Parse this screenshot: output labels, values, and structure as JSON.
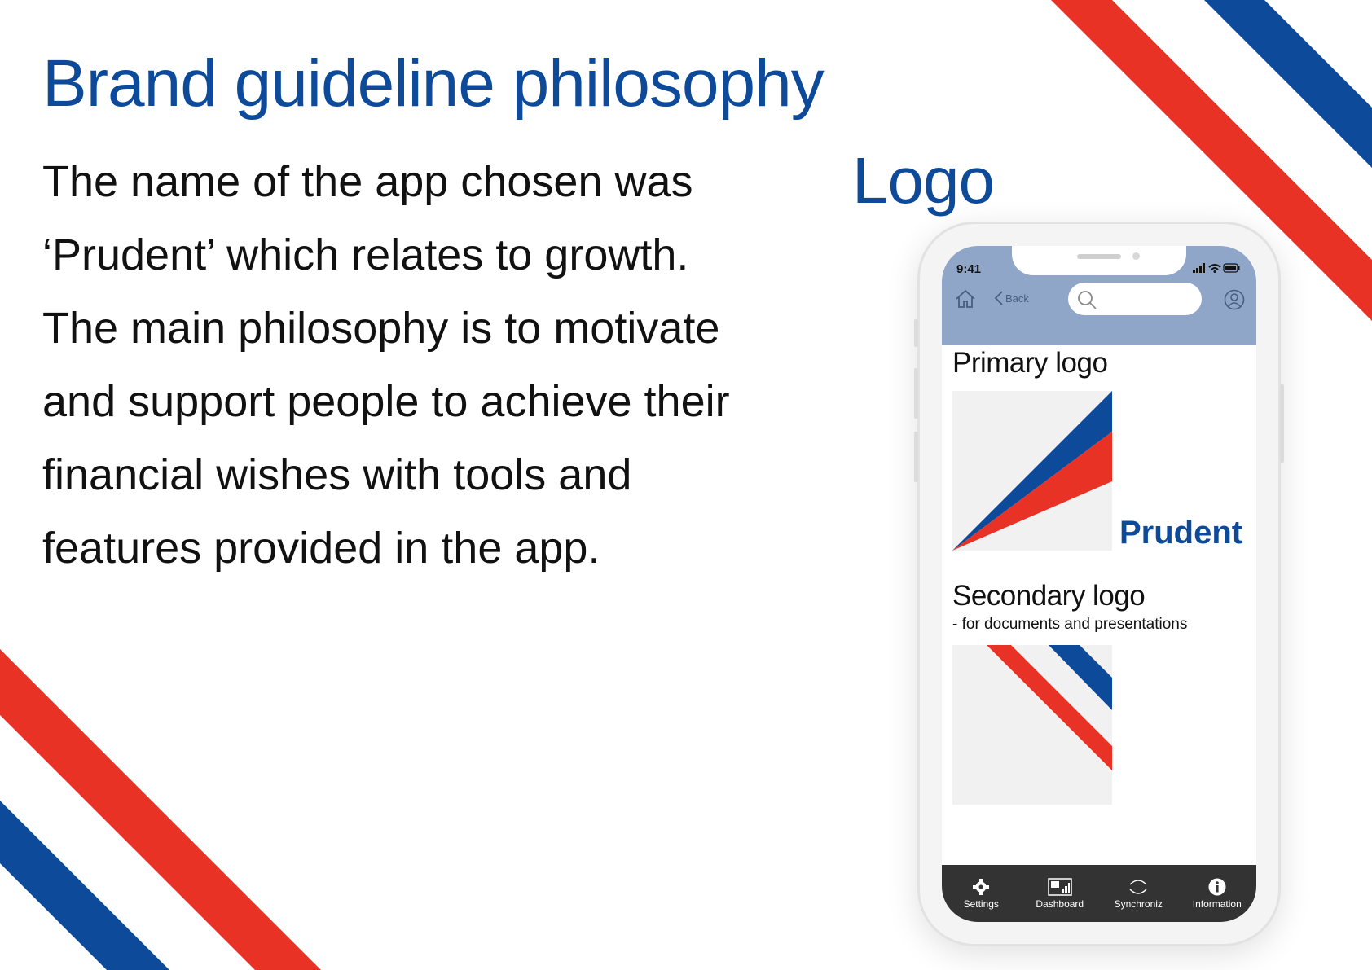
{
  "page": {
    "title": "Brand guideline philosophy",
    "body_lines": [
      "The name of the app chosen was",
      "‘Prudent’ which relates to growth.",
      "The main philosophy is to motivate",
      "and support people to achieve their",
      "financial wishes with tools and",
      "features provided in the app."
    ],
    "logo_heading": "Logo"
  },
  "colors": {
    "brand_blue": "#0d4a9a",
    "brand_red": "#e83226",
    "header_blue": "#8fa6c9",
    "tabbar_dark": "#333333"
  },
  "phone": {
    "status": {
      "time": "9:41"
    },
    "header": {
      "home_icon": "home-icon",
      "back_label": "Back",
      "search_placeholder": "",
      "profile_icon": "profile-icon"
    },
    "content": {
      "primary_heading": "Primary logo",
      "brand_name": "Prudent",
      "secondary_heading": "Secondary logo",
      "secondary_subtitle": "- for documents and  presentations"
    },
    "tabs": [
      {
        "label": "Settings",
        "icon": "gear-icon"
      },
      {
        "label": "Dashboard",
        "icon": "dashboard-icon"
      },
      {
        "label": "Synchroniz",
        "icon": "sync-icon"
      },
      {
        "label": "Information",
        "icon": "info-icon"
      }
    ]
  }
}
